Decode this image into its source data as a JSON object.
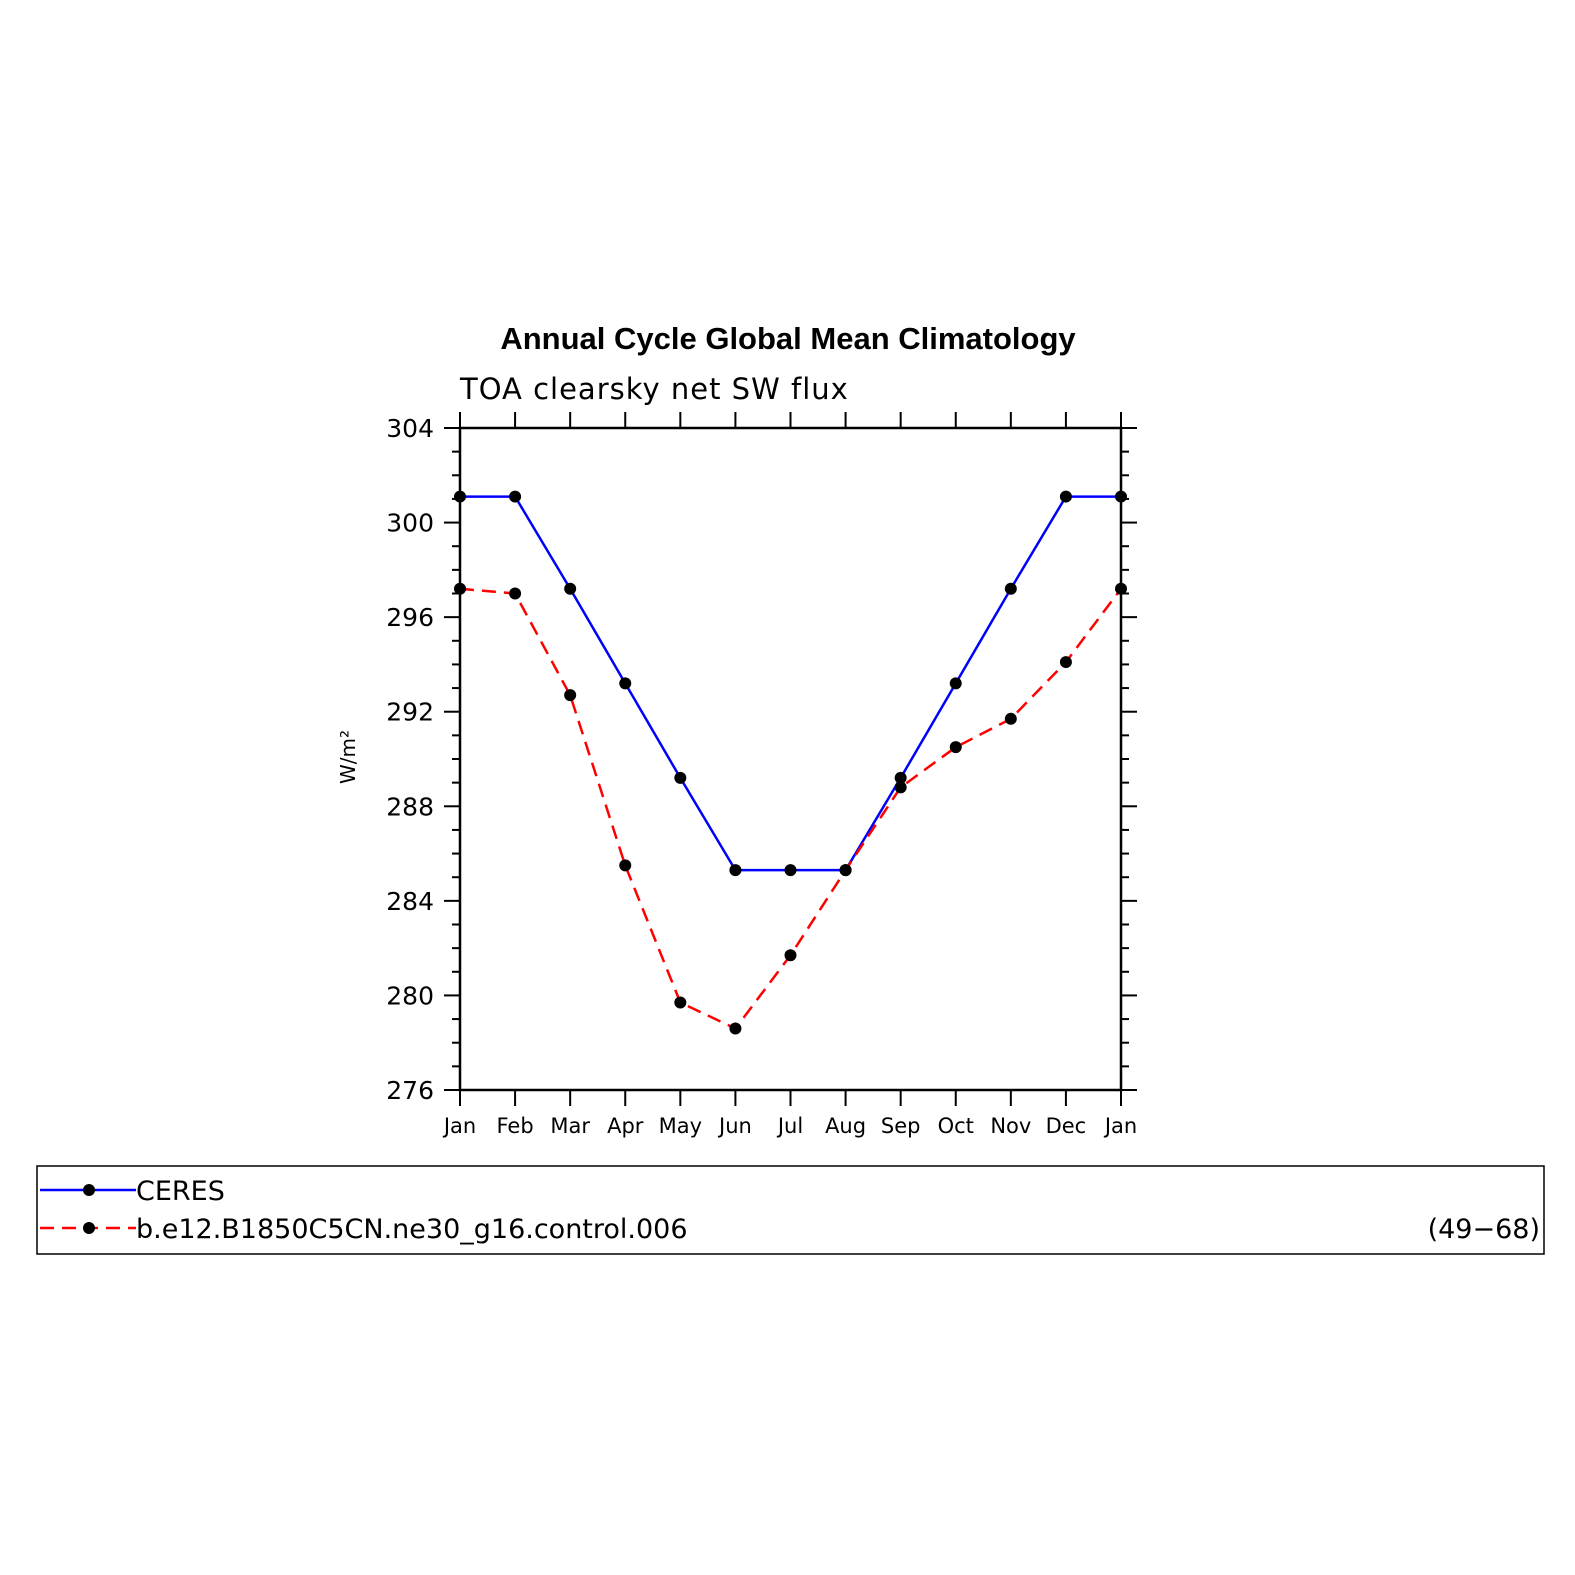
{
  "chart_data": {
    "type": "line",
    "title": "Annual Cycle Global Mean Climatology",
    "subtitle": "TOA clearsky net SW flux",
    "ylabel": "W/m²",
    "xlabel": "",
    "categories": [
      "Jan",
      "Feb",
      "Mar",
      "Apr",
      "May",
      "Jun",
      "Jul",
      "Aug",
      "Sep",
      "Oct",
      "Nov",
      "Dec",
      "Jan"
    ],
    "ylim": [
      276,
      304
    ],
    "yticks": [
      "276",
      "280",
      "284",
      "288",
      "292",
      "296",
      "300",
      "304"
    ],
    "grid": false,
    "series": [
      {
        "name": "CERES",
        "color": "#0000ff",
        "dash": "solid",
        "marker": "dot",
        "values": [
          301.1,
          301.1,
          297.2,
          293.2,
          289.2,
          285.3,
          285.3,
          285.3,
          289.2,
          293.2,
          297.2,
          301.1,
          301.1
        ]
      },
      {
        "name": "b.e12.B1850C5CN.ne30_g16.control.006",
        "color": "#ff0000",
        "dash": "dashed",
        "marker": "dot",
        "values": [
          297.2,
          297.0,
          292.7,
          285.5,
          279.7,
          278.6,
          281.7,
          285.3,
          288.8,
          290.5,
          291.7,
          294.1,
          297.2
        ]
      }
    ],
    "legend": {
      "placement": "bottom",
      "note": "(49−68)"
    }
  }
}
